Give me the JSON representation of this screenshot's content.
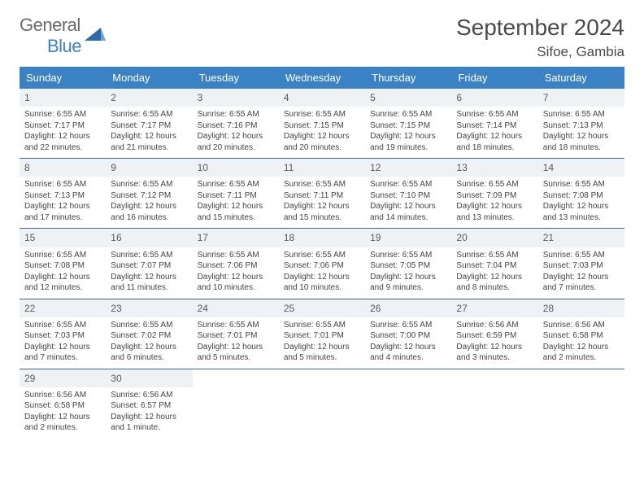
{
  "logo": {
    "text1": "General",
    "text2": "Blue"
  },
  "title": "September 2024",
  "location": "Sifoe, Gambia",
  "colors": {
    "header_bg": "#3b82c4",
    "header_text": "#ffffff",
    "daynum_bg": "#eef2f5",
    "daynum_text": "#5a5a5a",
    "body_text": "#444444",
    "week_divider": "#3b6a9a",
    "logo_gray": "#6b6b6b",
    "logo_blue": "#3b82c4"
  },
  "day_names": [
    "Sunday",
    "Monday",
    "Tuesday",
    "Wednesday",
    "Thursday",
    "Friday",
    "Saturday"
  ],
  "weeks": [
    [
      {
        "n": "1",
        "sr": "6:55 AM",
        "ss": "7:17 PM",
        "dl": "12 hours and 22 minutes."
      },
      {
        "n": "2",
        "sr": "6:55 AM",
        "ss": "7:17 PM",
        "dl": "12 hours and 21 minutes."
      },
      {
        "n": "3",
        "sr": "6:55 AM",
        "ss": "7:16 PM",
        "dl": "12 hours and 20 minutes."
      },
      {
        "n": "4",
        "sr": "6:55 AM",
        "ss": "7:15 PM",
        "dl": "12 hours and 20 minutes."
      },
      {
        "n": "5",
        "sr": "6:55 AM",
        "ss": "7:15 PM",
        "dl": "12 hours and 19 minutes."
      },
      {
        "n": "6",
        "sr": "6:55 AM",
        "ss": "7:14 PM",
        "dl": "12 hours and 18 minutes."
      },
      {
        "n": "7",
        "sr": "6:55 AM",
        "ss": "7:13 PM",
        "dl": "12 hours and 18 minutes."
      }
    ],
    [
      {
        "n": "8",
        "sr": "6:55 AM",
        "ss": "7:13 PM",
        "dl": "12 hours and 17 minutes."
      },
      {
        "n": "9",
        "sr": "6:55 AM",
        "ss": "7:12 PM",
        "dl": "12 hours and 16 minutes."
      },
      {
        "n": "10",
        "sr": "6:55 AM",
        "ss": "7:11 PM",
        "dl": "12 hours and 15 minutes."
      },
      {
        "n": "11",
        "sr": "6:55 AM",
        "ss": "7:11 PM",
        "dl": "12 hours and 15 minutes."
      },
      {
        "n": "12",
        "sr": "6:55 AM",
        "ss": "7:10 PM",
        "dl": "12 hours and 14 minutes."
      },
      {
        "n": "13",
        "sr": "6:55 AM",
        "ss": "7:09 PM",
        "dl": "12 hours and 13 minutes."
      },
      {
        "n": "14",
        "sr": "6:55 AM",
        "ss": "7:08 PM",
        "dl": "12 hours and 13 minutes."
      }
    ],
    [
      {
        "n": "15",
        "sr": "6:55 AM",
        "ss": "7:08 PM",
        "dl": "12 hours and 12 minutes."
      },
      {
        "n": "16",
        "sr": "6:55 AM",
        "ss": "7:07 PM",
        "dl": "12 hours and 11 minutes."
      },
      {
        "n": "17",
        "sr": "6:55 AM",
        "ss": "7:06 PM",
        "dl": "12 hours and 10 minutes."
      },
      {
        "n": "18",
        "sr": "6:55 AM",
        "ss": "7:06 PM",
        "dl": "12 hours and 10 minutes."
      },
      {
        "n": "19",
        "sr": "6:55 AM",
        "ss": "7:05 PM",
        "dl": "12 hours and 9 minutes."
      },
      {
        "n": "20",
        "sr": "6:55 AM",
        "ss": "7:04 PM",
        "dl": "12 hours and 8 minutes."
      },
      {
        "n": "21",
        "sr": "6:55 AM",
        "ss": "7:03 PM",
        "dl": "12 hours and 7 minutes."
      }
    ],
    [
      {
        "n": "22",
        "sr": "6:55 AM",
        "ss": "7:03 PM",
        "dl": "12 hours and 7 minutes."
      },
      {
        "n": "23",
        "sr": "6:55 AM",
        "ss": "7:02 PM",
        "dl": "12 hours and 6 minutes."
      },
      {
        "n": "24",
        "sr": "6:55 AM",
        "ss": "7:01 PM",
        "dl": "12 hours and 5 minutes."
      },
      {
        "n": "25",
        "sr": "6:55 AM",
        "ss": "7:01 PM",
        "dl": "12 hours and 5 minutes."
      },
      {
        "n": "26",
        "sr": "6:55 AM",
        "ss": "7:00 PM",
        "dl": "12 hours and 4 minutes."
      },
      {
        "n": "27",
        "sr": "6:56 AM",
        "ss": "6:59 PM",
        "dl": "12 hours and 3 minutes."
      },
      {
        "n": "28",
        "sr": "6:56 AM",
        "ss": "6:58 PM",
        "dl": "12 hours and 2 minutes."
      }
    ],
    [
      {
        "n": "29",
        "sr": "6:56 AM",
        "ss": "6:58 PM",
        "dl": "12 hours and 2 minutes."
      },
      {
        "n": "30",
        "sr": "6:56 AM",
        "ss": "6:57 PM",
        "dl": "12 hours and 1 minute."
      },
      null,
      null,
      null,
      null,
      null
    ]
  ],
  "labels": {
    "sunrise": "Sunrise:",
    "sunset": "Sunset:",
    "daylight": "Daylight:"
  }
}
